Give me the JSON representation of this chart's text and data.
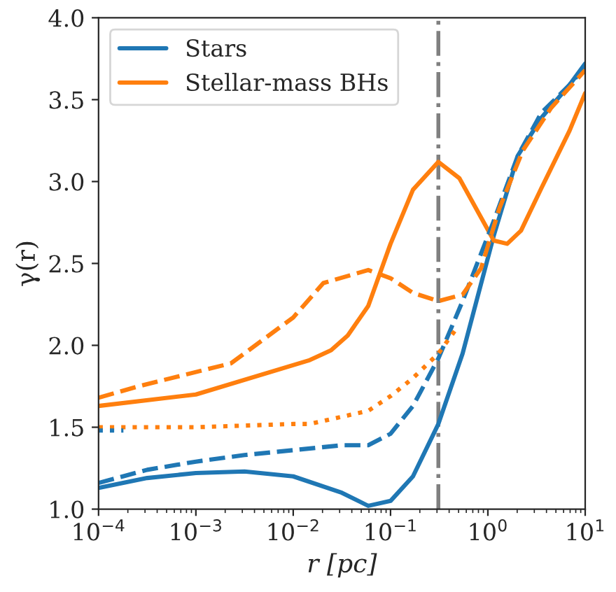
{
  "chart_data": {
    "type": "line",
    "xlabel": "r [pc]",
    "ylabel": "γ(r)",
    "log": "x",
    "xlim": [
      0.0001,
      10
    ],
    "ylim": [
      1.0,
      4.0
    ],
    "xticks": [
      {
        "value": 0.0001,
        "label": "10$^{−4}$"
      },
      {
        "value": 0.001,
        "label": "10$^{−3}$"
      },
      {
        "value": 0.01,
        "label": "10$^{−2}$"
      },
      {
        "value": 0.1,
        "label": "10$^{−1}$"
      },
      {
        "value": 1,
        "label": "10$^{0}$"
      },
      {
        "value": 10,
        "label": "10$^{1}$"
      }
    ],
    "yticks": [
      {
        "value": 1.0,
        "label": "1.0"
      },
      {
        "value": 1.5,
        "label": "1.5"
      },
      {
        "value": 2.0,
        "label": "2.0"
      },
      {
        "value": 2.5,
        "label": "2.5"
      },
      {
        "value": 3.0,
        "label": "3.0"
      },
      {
        "value": 3.5,
        "label": "3.5"
      },
      {
        "value": 4.0,
        "label": "4.0"
      }
    ],
    "grid": false,
    "legend": "top left",
    "ref_lines": [
      {
        "axis": "x",
        "value": 0.31,
        "label": null,
        "color": "#808080",
        "line_style": "dashdot"
      }
    ],
    "series": [
      {
        "name": "Stars",
        "color": "#1f77b4",
        "line_style": "solid",
        "x": [
          0.0001,
          0.000316,
          0.001,
          0.00316,
          0.01,
          0.0316,
          0.059,
          0.1,
          0.17,
          0.31,
          0.55,
          1.15,
          2.04,
          3.55,
          6.9,
          10
        ],
        "values": [
          1.13,
          1.19,
          1.22,
          1.23,
          1.2,
          1.1,
          1.02,
          1.05,
          1.2,
          1.52,
          1.95,
          2.67,
          3.16,
          3.39,
          3.59,
          3.72
        ]
      },
      {
        "name": "Stellar-mass BHs",
        "color": "#ff7f0e",
        "line_style": "solid",
        "x": [
          0.0001,
          0.001,
          0.0148,
          0.0245,
          0.0363,
          0.059,
          0.1,
          0.17,
          0.31,
          0.51,
          1.15,
          1.58,
          2.19,
          3.55,
          6.9,
          10
        ],
        "values": [
          1.63,
          1.7,
          1.91,
          1.97,
          2.06,
          2.24,
          2.62,
          2.95,
          3.12,
          3.02,
          2.64,
          2.62,
          2.7,
          2.96,
          3.31,
          3.54
        ]
      },
      {
        "color": "#1f77b4",
        "line_style": "dashed",
        "x": [
          0.0001,
          0.000316,
          0.001,
          0.00316,
          0.01,
          0.0316,
          0.059,
          0.1,
          0.17,
          0.31,
          0.55,
          1.15,
          2.04,
          3.55,
          6.9,
          10
        ],
        "values": [
          1.16,
          1.24,
          1.29,
          1.33,
          1.36,
          1.39,
          1.39,
          1.46,
          1.63,
          1.92,
          2.27,
          2.76,
          3.16,
          3.42,
          3.59,
          3.7
        ]
      },
      {
        "color": "#ff7f0e",
        "line_style": "dashed",
        "x": [
          0.0001,
          0.000257,
          0.00229,
          0.01,
          0.0204,
          0.059,
          0.1,
          0.17,
          0.31,
          0.55,
          0.85,
          1.32,
          2.29,
          4.47,
          10
        ],
        "values": [
          1.68,
          1.75,
          1.89,
          2.17,
          2.38,
          2.46,
          2.41,
          2.32,
          2.27,
          2.31,
          2.47,
          2.84,
          3.19,
          3.45,
          3.68
        ]
      },
      {
        "color": "#ff7f0e",
        "line_style": "dotted",
        "x": [
          0.0001,
          0.001,
          0.01,
          0.0148,
          0.059,
          0.1,
          0.17,
          0.31,
          0.5
        ],
        "values": [
          1.5,
          1.5,
          1.52,
          1.52,
          1.6,
          1.69,
          1.8,
          1.95,
          2.12
        ]
      },
      {
        "color": "#1f77b4",
        "line_style": "dotted",
        "x": [
          0.0001,
          0.00018
        ],
        "values": [
          1.48,
          1.48
        ]
      }
    ]
  }
}
